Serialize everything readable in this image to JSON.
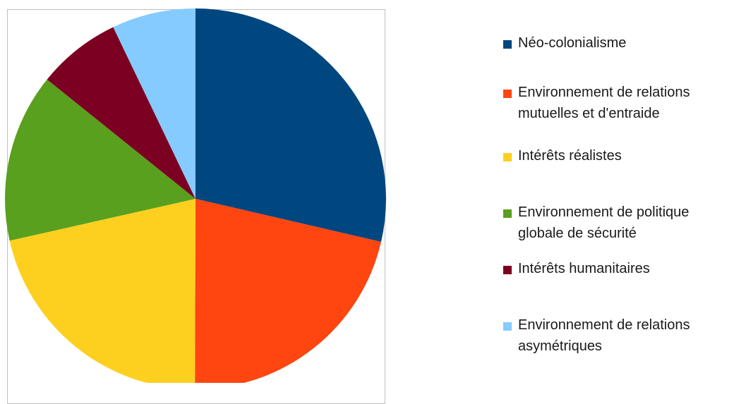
{
  "chart_data": {
    "type": "pie",
    "title": "",
    "slices": [
      {
        "label": "Néo-colonialisme",
        "value": 28.6,
        "color": "#00467f"
      },
      {
        "label": "Environnement de relations mutuelles et d'entraide",
        "value": 21.4,
        "color": "#ff4510"
      },
      {
        "label": "Intérêts réalistes",
        "value": 21.4,
        "color": "#fdd020"
      },
      {
        "label": "Environnement de politique globale de sécurité",
        "value": 14.3,
        "color": "#59a01e"
      },
      {
        "label": "Intérêts humanitaires",
        "value": 7.1,
        "color": "#7c0022"
      },
      {
        "label": "Environnement de relations asymétriques",
        "value": 7.1,
        "color": "#86cbff"
      }
    ],
    "start_angle_deg": 0,
    "direction": "clockwise",
    "legend_position": "right"
  }
}
